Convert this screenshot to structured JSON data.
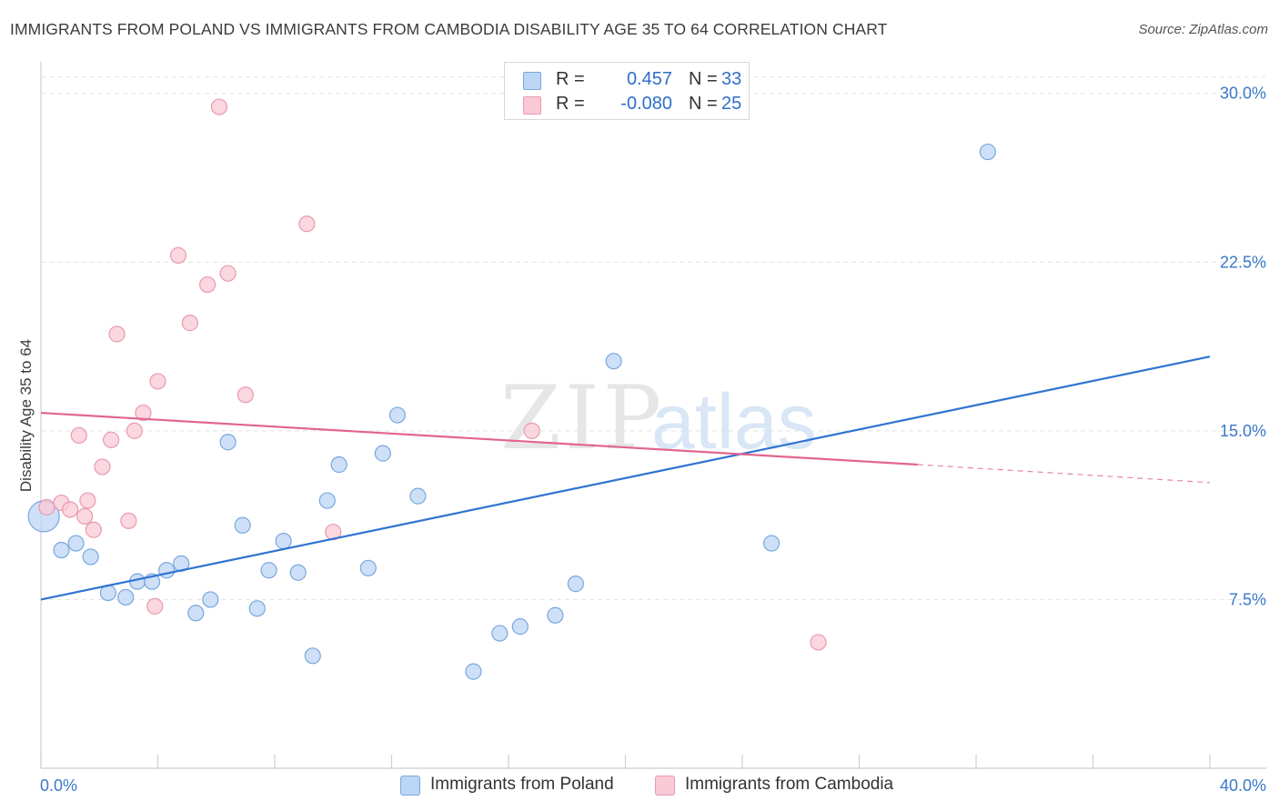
{
  "title": "IMMIGRANTS FROM POLAND VS IMMIGRANTS FROM CAMBODIA DISABILITY AGE 35 TO 64 CORRELATION CHART",
  "source": "Source: ZipAtlas.com",
  "watermark": {
    "zip": "ZIP",
    "atlas": "atlas"
  },
  "legend": {
    "r_label": "R =",
    "n_label": "N =",
    "rows": [
      {
        "r": "0.457",
        "n": "33"
      },
      {
        "r": "-0.080",
        "n": "25"
      }
    ]
  },
  "colors": {
    "poland_fill": "#bcd6f5",
    "poland_stroke": "#7aa7dc",
    "poland_line": "#2f74d0",
    "cambodia_fill": "#f9c9d6",
    "cambodia_stroke": "#e89ab0",
    "cambodia_line": "#e2658e",
    "tick_label": "#3a78c8"
  },
  "chart_data": {
    "type": "scatter",
    "title": "IMMIGRANTS FROM POLAND VS IMMIGRANTS FROM CAMBODIA DISABILITY AGE 35 TO 64 CORRELATION CHART",
    "xlabel": "",
    "ylabel": "Disability Age 35 to 64",
    "xlim": [
      0,
      40
    ],
    "ylim": [
      0,
      31
    ],
    "x_tick_labels": [
      "0.0%",
      "40.0%"
    ],
    "y_ticks": [
      7.5,
      15.0,
      22.5,
      30.0
    ],
    "y_tick_labels": [
      "7.5%",
      "15.0%",
      "22.5%",
      "30.0%"
    ],
    "grid": true,
    "series": [
      {
        "name": "Immigrants from Poland",
        "r": 0.457,
        "n": 33,
        "points": [
          [
            0.1,
            11.2
          ],
          [
            0.7,
            9.7
          ],
          [
            1.2,
            10.0
          ],
          [
            1.7,
            9.4
          ],
          [
            2.3,
            7.8
          ],
          [
            2.9,
            7.6
          ],
          [
            3.3,
            8.3
          ],
          [
            3.8,
            8.3
          ],
          [
            4.3,
            8.8
          ],
          [
            4.8,
            9.1
          ],
          [
            5.3,
            6.9
          ],
          [
            5.8,
            7.5
          ],
          [
            6.4,
            14.5
          ],
          [
            6.9,
            10.8
          ],
          [
            7.4,
            7.1
          ],
          [
            7.8,
            8.8
          ],
          [
            8.3,
            10.1
          ],
          [
            8.8,
            8.7
          ],
          [
            9.3,
            5.0
          ],
          [
            9.8,
            11.9
          ],
          [
            10.2,
            13.5
          ],
          [
            11.2,
            8.9
          ],
          [
            11.7,
            14.0
          ],
          [
            12.2,
            15.7
          ],
          [
            12.9,
            12.1
          ],
          [
            14.8,
            4.3
          ],
          [
            15.7,
            6.0
          ],
          [
            16.4,
            6.3
          ],
          [
            17.6,
            6.8
          ],
          [
            18.3,
            8.2
          ],
          [
            19.6,
            18.1
          ],
          [
            25.0,
            10.0
          ],
          [
            32.4,
            27.4
          ]
        ],
        "trend": {
          "x_start": 0,
          "y_start": 7.5,
          "x_end": 40,
          "y_end": 18.3
        }
      },
      {
        "name": "Immigrants from Cambodia",
        "r": -0.08,
        "n": 25,
        "points": [
          [
            0.2,
            11.6
          ],
          [
            0.7,
            11.8
          ],
          [
            1.0,
            11.5
          ],
          [
            1.3,
            14.8
          ],
          [
            1.6,
            11.9
          ],
          [
            1.8,
            10.6
          ],
          [
            2.1,
            13.4
          ],
          [
            2.4,
            14.6
          ],
          [
            2.6,
            19.3
          ],
          [
            3.0,
            11.0
          ],
          [
            3.2,
            15.0
          ],
          [
            3.5,
            15.8
          ],
          [
            3.9,
            7.2
          ],
          [
            4.0,
            17.2
          ],
          [
            4.7,
            22.8
          ],
          [
            5.1,
            19.8
          ],
          [
            5.7,
            21.5
          ],
          [
            6.1,
            29.4
          ],
          [
            6.4,
            22.0
          ],
          [
            7.0,
            16.6
          ],
          [
            9.1,
            24.2
          ],
          [
            10.0,
            10.5
          ],
          [
            16.8,
            15.0
          ],
          [
            26.6,
            5.6
          ],
          [
            1.5,
            11.2
          ]
        ],
        "trend": {
          "x_start": 0,
          "y_start": 15.8,
          "x_end": 30,
          "y_end": 13.5,
          "dashed_to_x": 40,
          "dashed_to_y": 12.7
        }
      }
    ]
  },
  "bottom_legend": [
    {
      "label": "Immigrants from Poland"
    },
    {
      "label": "Immigrants from Cambodia"
    }
  ]
}
